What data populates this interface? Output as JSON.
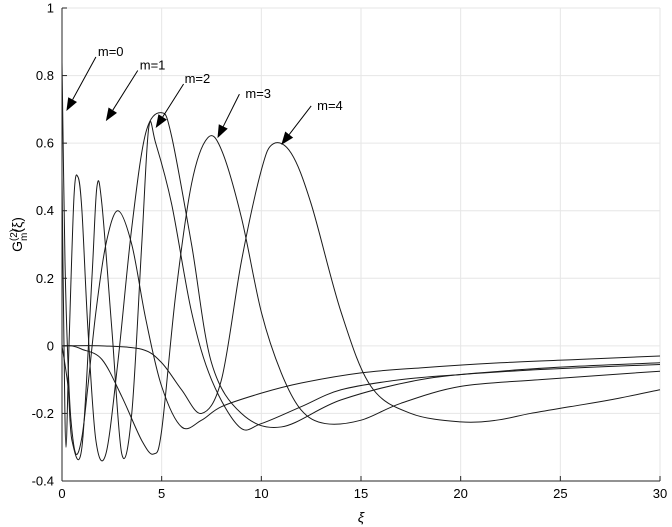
{
  "chart_data": {
    "type": "line",
    "title": "",
    "xlabel": "ξ",
    "ylabel": {
      "base": "G",
      "sup": "(2)",
      "sub": "m",
      "arg": "(ξ)"
    },
    "xlim": [
      0,
      30
    ],
    "ylim": [
      -0.4,
      1
    ],
    "xticks": [
      0,
      5,
      10,
      15,
      20,
      25,
      30
    ],
    "yticks": [
      -0.4,
      -0.2,
      0,
      0.2,
      0.4,
      0.6,
      0.8,
      1
    ],
    "xtick_labels": [
      "0",
      "5",
      "10",
      "15",
      "20",
      "25",
      "30"
    ],
    "ytick_labels": [
      "-0.4",
      "-0.2",
      "0",
      "0.2",
      "0.4",
      "0.6",
      "0.8",
      "1"
    ],
    "grid": true,
    "colors": {
      "line": "#1a1a1a",
      "grid": "#e6e6e6",
      "axis": "#262626"
    },
    "series": [
      {
        "name": "m=0",
        "x": [
          0,
          0.15,
          0.3,
          0.45,
          0.7,
          1.0,
          1.3,
          1.7,
          2.2,
          2.8,
          3.5,
          4.2,
          5.0,
          6,
          7,
          8,
          10,
          12,
          15,
          18,
          22,
          26,
          30
        ],
        "y": [
          0.84,
          0.25,
          -0.05,
          -0.22,
          -0.32,
          -0.27,
          -0.12,
          0.1,
          0.3,
          0.4,
          0.3,
          0.08,
          -0.12,
          -0.24,
          -0.22,
          -0.18,
          -0.14,
          -0.11,
          -0.08,
          -0.065,
          -0.05,
          -0.04,
          -0.03
        ]
      },
      {
        "name": "m=1",
        "x": [
          0,
          0.1,
          0.2,
          0.35,
          0.6,
          0.8,
          1.0,
          1.3,
          1.7,
          2.2,
          2.8,
          3.5,
          4.2,
          5.0,
          5.5,
          6.5,
          7.5,
          9,
          11,
          14,
          18,
          22,
          26,
          30
        ],
        "y": [
          0.5,
          0.0,
          -0.3,
          0.0,
          0.44,
          0.5,
          0.4,
          0.05,
          -0.28,
          -0.32,
          -0.05,
          0.35,
          0.63,
          0.69,
          0.62,
          0.3,
          -0.05,
          -0.2,
          -0.24,
          -0.16,
          -0.1,
          -0.075,
          -0.06,
          -0.05
        ]
      },
      {
        "name": "m=2",
        "x": [
          0,
          0.3,
          0.5,
          1.0,
          1.5,
          1.75,
          2.0,
          2.5,
          3.0,
          3.5,
          4.0,
          4.35,
          4.7,
          5.5,
          6.5,
          7.5,
          8.9,
          10,
          12,
          14,
          17,
          20,
          24,
          30
        ],
        "y": [
          0,
          -0.12,
          -0.28,
          -0.3,
          0.2,
          0.47,
          0.42,
          0.05,
          -0.32,
          -0.2,
          0.3,
          0.645,
          0.6,
          0.42,
          0.1,
          -0.1,
          -0.24,
          -0.23,
          -0.18,
          -0.13,
          -0.1,
          -0.085,
          -0.07,
          -0.055
        ]
      },
      {
        "name": "m=3",
        "x": [
          0,
          0.5,
          1.0,
          2.0,
          3.0,
          4.0,
          4.6,
          5.0,
          5.7,
          6.5,
          7.3,
          8.0,
          9.0,
          10,
          11,
          12,
          13.2,
          15,
          17,
          20,
          24,
          30
        ],
        "y": [
          0,
          0.0,
          -0.01,
          -0.04,
          -0.15,
          -0.28,
          -0.32,
          -0.25,
          0.15,
          0.48,
          0.615,
          0.58,
          0.38,
          0.1,
          -0.08,
          -0.19,
          -0.23,
          -0.22,
          -0.17,
          -0.12,
          -0.1,
          -0.075
        ]
      },
      {
        "name": "m=4",
        "x": [
          0,
          2.0,
          4.0,
          5.0,
          6.0,
          7.0,
          8.0,
          9.0,
          10,
          10.6,
          11.5,
          12.5,
          14,
          15.5,
          17.5,
          20,
          21.8,
          23.5,
          25.5,
          27.5,
          30
        ],
        "y": [
          0,
          0.0,
          -0.01,
          -0.05,
          -0.13,
          -0.2,
          -0.1,
          0.25,
          0.52,
          0.598,
          0.57,
          0.42,
          0.1,
          -0.12,
          -0.2,
          -0.225,
          -0.22,
          -0.2,
          -0.18,
          -0.16,
          -0.13
        ]
      }
    ],
    "annotations": [
      {
        "text": "m=0",
        "tail_x": 1.7,
        "tail_y": 0.855,
        "head_x": 0.22,
        "head_y": 0.695,
        "text_x": 1.8,
        "text_y": 0.87
      },
      {
        "text": "m=1",
        "tail_x": 3.8,
        "tail_y": 0.815,
        "head_x": 2.2,
        "head_y": 0.665,
        "text_x": 3.9,
        "text_y": 0.83
      },
      {
        "text": "m=2",
        "tail_x": 6.1,
        "tail_y": 0.775,
        "head_x": 4.7,
        "head_y": 0.645,
        "text_x": 6.15,
        "text_y": 0.79
      },
      {
        "text": "m=3",
        "tail_x": 8.9,
        "tail_y": 0.745,
        "head_x": 7.8,
        "head_y": 0.615,
        "text_x": 9.2,
        "text_y": 0.745
      },
      {
        "text": "m=4",
        "tail_x": 12.5,
        "tail_y": 0.71,
        "head_x": 11.0,
        "head_y": 0.595,
        "text_x": 12.8,
        "text_y": 0.71
      }
    ]
  }
}
